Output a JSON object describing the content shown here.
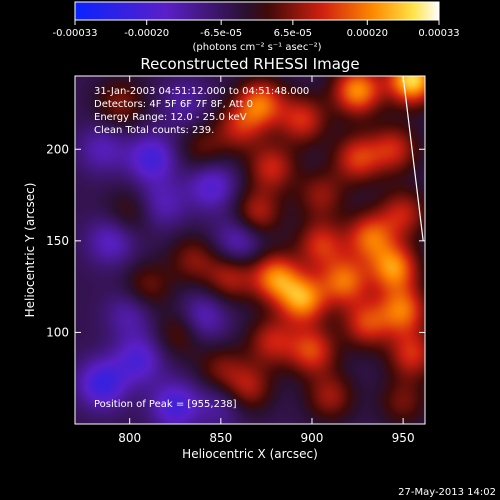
{
  "chart_data": {
    "type": "heatmap",
    "title": "Reconstructed RHESSI Image",
    "xlabel": "Heliocentric X (arcsec)",
    "ylabel": "Heliocentric Y (arcsec)",
    "xlim": [
      770,
      962
    ],
    "ylim": [
      50,
      240
    ],
    "x_ticks": [
      800,
      850,
      900,
      950
    ],
    "y_ticks": [
      100,
      150,
      200
    ],
    "colorbar": {
      "range": [
        -0.00033,
        0.00033
      ],
      "tick_values": [
        -0.00033,
        -0.0002,
        -6.5e-05,
        6.5e-05,
        0.0002,
        0.00033
      ],
      "tick_labels": [
        "-0.00033",
        "-0.00020",
        "-6.5e-05",
        "6.5e-05",
        "0.00020",
        "0.00033"
      ],
      "unit_label": "(photons cm⁻² s⁻¹ asec⁻²)",
      "colormap": "blue-purple-red-yellow-white"
    },
    "annotations": [
      "31-Jan-2003 04:51:12.000 to 04:51:48.000",
      "Detectors: 4F 5F 6F 7F 8F, Att 0",
      "Energy Range: 12.0 - 25.0 keV",
      "Clean    Total counts: 239.",
      "Position of Peak = [955,238]"
    ],
    "limb_line": [
      [
        950,
        240
      ],
      [
        961,
        150
      ]
    ],
    "sources": [
      {
        "x": 955,
        "y": 238,
        "value": 0.00033
      },
      {
        "x": 872,
        "y": 225,
        "value": 0.00022
      },
      {
        "x": 925,
        "y": 232,
        "value": 0.00026
      },
      {
        "x": 895,
        "y": 216,
        "value": 0.00017
      },
      {
        "x": 860,
        "y": 212,
        "value": 0.00014
      },
      {
        "x": 925,
        "y": 195,
        "value": 0.00018
      },
      {
        "x": 945,
        "y": 200,
        "value": 0.00016
      },
      {
        "x": 878,
        "y": 190,
        "value": 0.00016
      },
      {
        "x": 870,
        "y": 165,
        "value": 0.00015
      },
      {
        "x": 905,
        "y": 175,
        "value": 0.00012
      },
      {
        "x": 950,
        "y": 165,
        "value": 0.00015
      },
      {
        "x": 932,
        "y": 152,
        "value": 0.00021
      },
      {
        "x": 905,
        "y": 148,
        "value": 0.00017
      },
      {
        "x": 945,
        "y": 135,
        "value": 0.00025
      },
      {
        "x": 880,
        "y": 130,
        "value": 0.00024
      },
      {
        "x": 918,
        "y": 128,
        "value": 0.00022
      },
      {
        "x": 895,
        "y": 118,
        "value": 0.00026
      },
      {
        "x": 950,
        "y": 112,
        "value": 0.00022
      },
      {
        "x": 930,
        "y": 105,
        "value": 0.00018
      },
      {
        "x": 900,
        "y": 90,
        "value": 0.00019
      },
      {
        "x": 955,
        "y": 88,
        "value": 0.00017
      },
      {
        "x": 878,
        "y": 95,
        "value": 0.00015
      },
      {
        "x": 865,
        "y": 70,
        "value": 0.00014
      },
      {
        "x": 910,
        "y": 65,
        "value": 0.00013
      },
      {
        "x": 950,
        "y": 62,
        "value": 0.0001
      },
      {
        "x": 855,
        "y": 130,
        "value": 0.00014
      },
      {
        "x": 835,
        "y": 140,
        "value": 0.00011
      },
      {
        "x": 810,
        "y": 125,
        "value": 0.0001
      },
      {
        "x": 828,
        "y": 100,
        "value": 0.0001
      },
      {
        "x": 795,
        "y": 225,
        "value": 0.00011
      },
      {
        "x": 840,
        "y": 200,
        "value": 9e-05
      },
      {
        "x": 800,
        "y": 165,
        "value": 8e-05
      },
      {
        "x": 850,
        "y": 80,
        "value": 0.0001
      },
      {
        "x": 830,
        "y": 225,
        "value": -8e-05
      },
      {
        "x": 812,
        "y": 195,
        "value": -0.00016
      },
      {
        "x": 845,
        "y": 180,
        "value": -0.00014
      },
      {
        "x": 790,
        "y": 150,
        "value": -0.00012
      },
      {
        "x": 860,
        "y": 150,
        "value": -0.00012
      },
      {
        "x": 785,
        "y": 72,
        "value": -0.00018
      },
      {
        "x": 805,
        "y": 85,
        "value": -0.00014
      },
      {
        "x": 840,
        "y": 108,
        "value": -0.00012
      },
      {
        "x": 825,
        "y": 60,
        "value": -0.00016
      },
      {
        "x": 818,
        "y": 170,
        "value": -0.0001
      },
      {
        "x": 785,
        "y": 200,
        "value": -0.0001
      },
      {
        "x": 800,
        "y": 110,
        "value": -9e-05
      },
      {
        "x": 850,
        "y": 60,
        "value": -8e-05
      }
    ]
  },
  "footer_date": "27-May-2013 14:02"
}
